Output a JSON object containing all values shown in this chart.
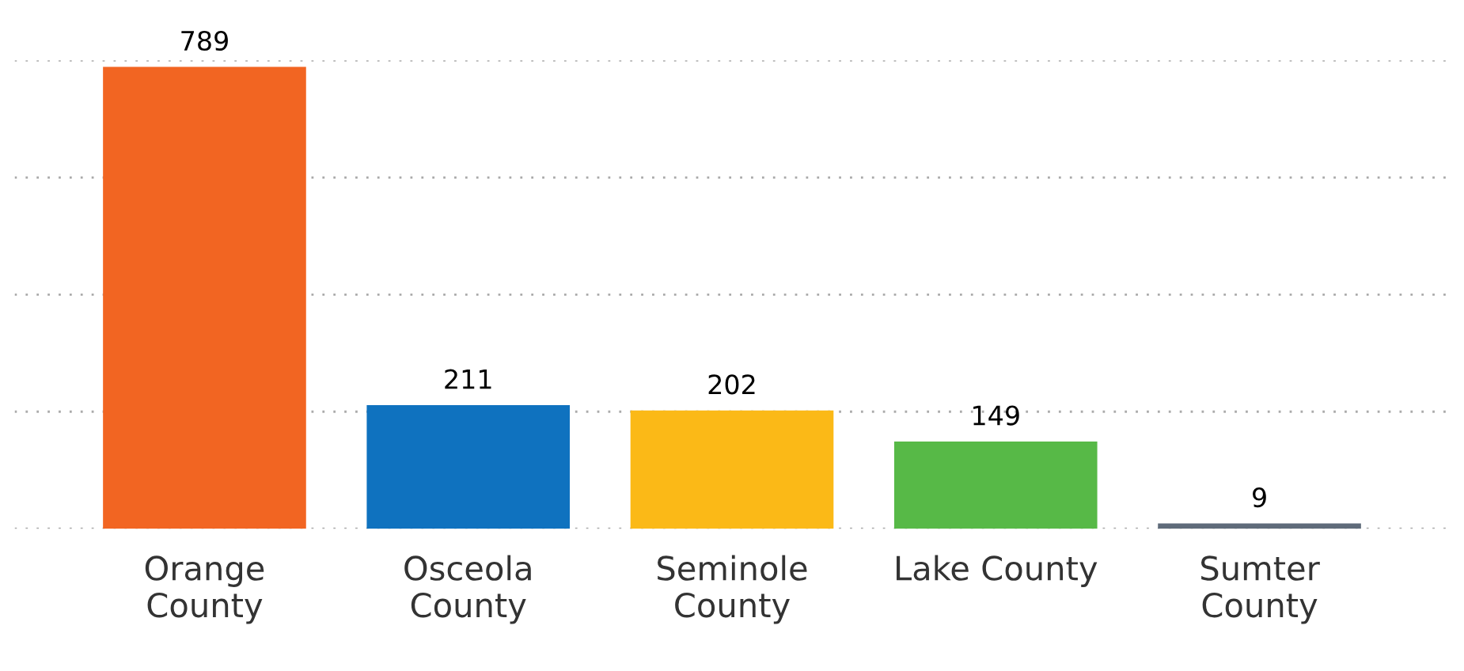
{
  "chart_data": {
    "type": "bar",
    "categories": [
      "Orange\nCounty",
      "Osceola\nCounty",
      "Seminole\nCounty",
      "Lake County",
      "Sumter\nCounty"
    ],
    "values": [
      789,
      211,
      202,
      149,
      9
    ],
    "colors": [
      "#f26522",
      "#0f72bf",
      "#fbb917",
      "#57b947",
      "#5f6b7a"
    ],
    "ylim": [
      0,
      800
    ],
    "yticks": [
      {
        "value": 0,
        "label": null
      },
      {
        "value": 200,
        "label": null
      },
      {
        "value": 400,
        "label": null
      },
      {
        "value": 600,
        "label": null
      },
      {
        "value": 800,
        "label": null
      }
    ],
    "grid": "y",
    "data_labels": true,
    "tick_labels": "x"
  }
}
